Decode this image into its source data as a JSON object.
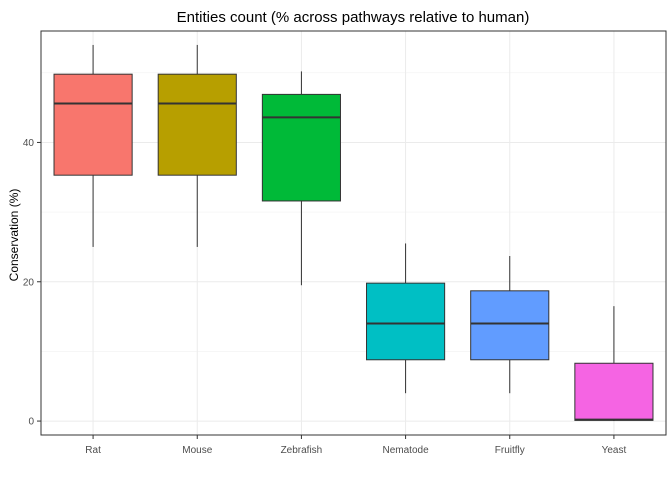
{
  "chart_data": {
    "type": "boxplot",
    "title": "Entities count (% across pathways relative to human)",
    "xlabel": "",
    "ylabel": "Conservation (%)",
    "yticks": [
      0,
      20,
      40
    ],
    "ylim": [
      -2,
      56
    ],
    "grid": true,
    "legend": "none",
    "categories": [
      "Rat",
      "Mouse",
      "Zebrafish",
      "Nematode",
      "Fruitfly",
      "Yeast"
    ],
    "boxes": [
      {
        "category": "Rat",
        "min": 25.0,
        "q1": 35.3,
        "median": 45.6,
        "q3": 49.8,
        "max": 54.0,
        "color": "#F8766D"
      },
      {
        "category": "Mouse",
        "min": 25.0,
        "q1": 35.3,
        "median": 45.6,
        "q3": 49.8,
        "max": 54.0,
        "color": "#B79F00"
      },
      {
        "category": "Zebrafish",
        "min": 19.5,
        "q1": 31.6,
        "median": 43.6,
        "q3": 46.9,
        "max": 50.2,
        "color": "#00BA38"
      },
      {
        "category": "Nematode",
        "min": 4.0,
        "q1": 8.8,
        "median": 14.0,
        "q3": 19.8,
        "max": 25.5,
        "color": "#00BFC4"
      },
      {
        "category": "Fruitfly",
        "min": 4.0,
        "q1": 8.8,
        "median": 14.0,
        "q3": 18.7,
        "max": 23.7,
        "color": "#619CFF"
      },
      {
        "category": "Yeast",
        "min": 0.0,
        "q1": 0.1,
        "median": 0.2,
        "q3": 8.3,
        "max": 16.5,
        "color": "#F564E3"
      }
    ]
  }
}
